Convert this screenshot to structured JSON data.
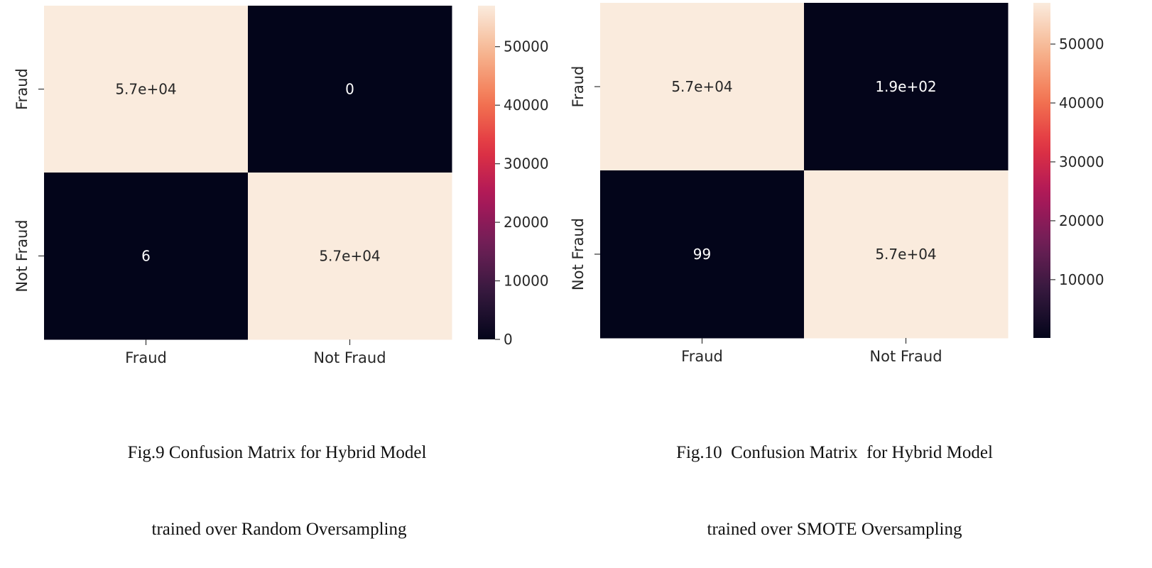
{
  "chart_data": [
    {
      "type": "heatmap",
      "x_categories": [
        "Fraud",
        "Not Fraud"
      ],
      "y_categories": [
        "Fraud",
        "Not Fraud"
      ],
      "values": [
        [
          57000,
          0
        ],
        [
          6,
          57000
        ]
      ],
      "cell_labels": [
        [
          "5.7e+04",
          "0"
        ],
        [
          "6",
          "5.7e+04"
        ]
      ],
      "colorbar": {
        "range": [
          0,
          57000
        ],
        "ticks": [
          0,
          10000,
          20000,
          30000,
          40000,
          50000
        ],
        "tick_labels": [
          "0",
          "10000",
          "20000",
          "30000",
          "40000",
          "50000"
        ]
      },
      "colormap": "rocket",
      "caption_lines": [
        "Fig.9 Confusion Matrix for Hybrid Model",
        "trained over Random Oversampling"
      ]
    },
    {
      "type": "heatmap",
      "x_categories": [
        "Fraud",
        "Not Fraud"
      ],
      "y_categories": [
        "Fraud",
        "Not Fraud"
      ],
      "values": [
        [
          57000,
          190
        ],
        [
          99,
          57000
        ]
      ],
      "cell_labels": [
        [
          "5.7e+04",
          "1.9e+02"
        ],
        [
          "99",
          "5.7e+04"
        ]
      ],
      "colorbar": {
        "range": [
          99,
          57000
        ],
        "ticks": [
          10000,
          20000,
          30000,
          40000,
          50000
        ],
        "tick_labels": [
          "10000",
          "20000",
          "30000",
          "40000",
          "50000"
        ]
      },
      "colormap": "rocket",
      "caption_lines": [
        "Fig.10  Confusion Matrix  for Hybrid Model",
        "trained over SMOTE Oversampling"
      ]
    }
  ],
  "colors": {
    "cmap_stops": [
      "#03051a",
      "#35193e",
      "#701f57",
      "#ad1759",
      "#e13342",
      "#f37651",
      "#f6b48f",
      "#faebdd"
    ],
    "light_text": "#ffffff",
    "dark_text": "#262626"
  }
}
